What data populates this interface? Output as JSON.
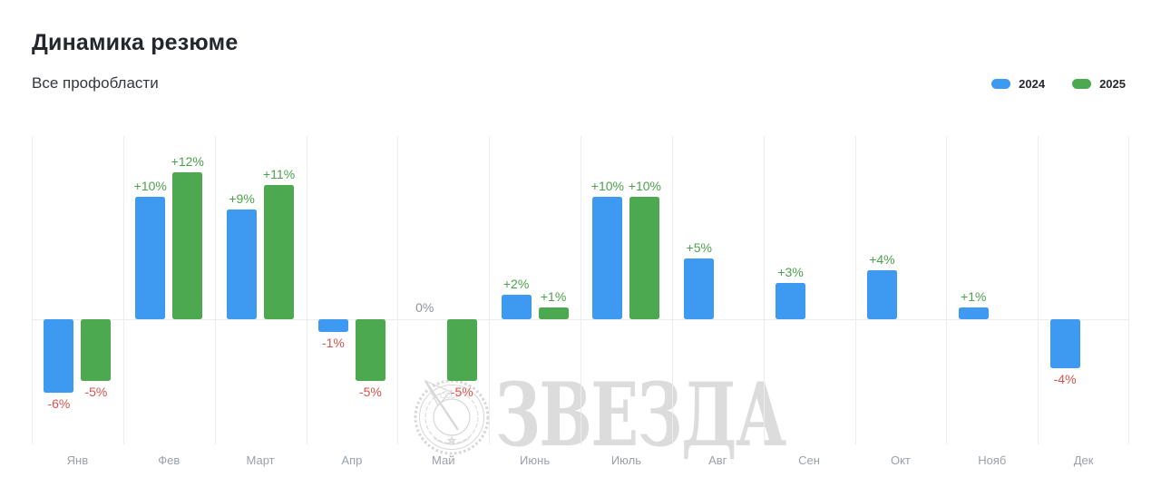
{
  "header": {
    "title": "Динамика резюме",
    "subtitle": "Все профобласти"
  },
  "legend": [
    {
      "label": "2024",
      "color": "#3e9af0"
    },
    {
      "label": "2025",
      "color": "#4ca94f"
    }
  ],
  "watermark": {
    "text": "ЗВЕЗДА",
    "emblem": "soviet-order-medal-emblem"
  },
  "colors": {
    "blue": "#3e9af0",
    "green": "#4ca94f",
    "positive_label": "#4da04b",
    "negative_label": "#d9544d",
    "zero_label": "#8e939a",
    "grid": "#ebecee",
    "axis_text": "#9ba1a8"
  },
  "chart_data": {
    "type": "bar",
    "title": "Динамика резюме",
    "subtitle": "Все профобласти",
    "categories": [
      "Янв",
      "Фев",
      "Март",
      "Апр",
      "Май",
      "Июнь",
      "Июль",
      "Авг",
      "Сен",
      "Окт",
      "Нояб",
      "Дек"
    ],
    "series": [
      {
        "name": "2024",
        "color_key": "blue",
        "values": [
          -6,
          10,
          9,
          -1,
          0,
          2,
          10,
          5,
          3,
          4,
          1,
          -4
        ]
      },
      {
        "name": "2025",
        "color_key": "green",
        "values": [
          -5,
          12,
          11,
          -5,
          -5,
          1,
          10,
          null,
          null,
          null,
          null,
          null
        ]
      }
    ],
    "value_labels": [
      [
        "-6%",
        "-5%"
      ],
      [
        "+10%",
        "+12%"
      ],
      [
        "+9%",
        "+11%"
      ],
      [
        "-1%",
        "-5%"
      ],
      [
        "0%",
        "-5%"
      ],
      [
        "+2%",
        "+1%"
      ],
      [
        "+10%",
        "+10%"
      ],
      [
        "+5%",
        null
      ],
      [
        "+3%",
        null
      ],
      [
        "+4%",
        null
      ],
      [
        "+1%",
        null
      ],
      [
        "-4%",
        null
      ]
    ],
    "unit": "%",
    "ylim": [
      -10,
      15
    ],
    "grid": "vertical month separators + horizontal zero baseline",
    "legend_position": "top-right"
  }
}
